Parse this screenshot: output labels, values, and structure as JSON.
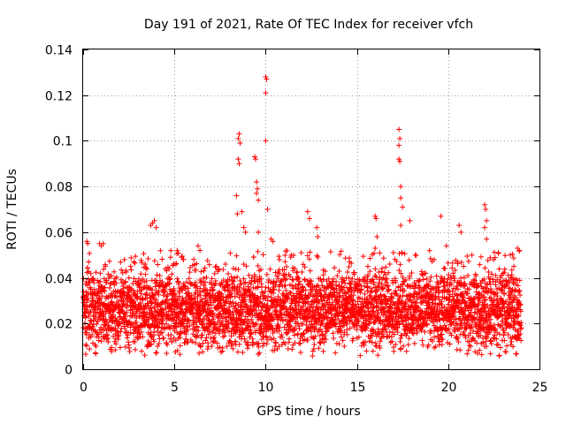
{
  "chart_data": {
    "type": "scatter",
    "title": "Day 191 of 2021, Rate Of TEC Index for receiver vfch",
    "xlabel": "GPS time / hours",
    "ylabel": "ROTI / TECUs",
    "xlim": [
      0,
      25
    ],
    "ylim": [
      0,
      0.14
    ],
    "x_ticks": [
      0,
      5,
      10,
      15,
      20,
      25
    ],
    "x_tick_labels": [
      "0",
      "5",
      "10",
      "15",
      "20",
      "25"
    ],
    "y_ticks": [
      0,
      0.02,
      0.04,
      0.06,
      0.08,
      0.1,
      0.12,
      0.14
    ],
    "y_tick_labels": [
      "0",
      "0.02",
      "0.04",
      "0.06",
      "0.08",
      "0.1",
      "0.12",
      "0.14"
    ],
    "grid": true,
    "marker": "+",
    "color": "#ff0000",
    "series": [
      {
        "name": "ROTI",
        "background_band": {
          "x_range": [
            0,
            24
          ],
          "typical_range": [
            0.005,
            0.04
          ],
          "median": 0.017,
          "note": "dense cloud of thousands of '+' points; values estimated from the figure"
        },
        "points": [
          {
            "x": 0.2,
            "y": 0.056
          },
          {
            "x": 0.25,
            "y": 0.055
          },
          {
            "x": 0.3,
            "y": 0.047
          },
          {
            "x": 0.9,
            "y": 0.055
          },
          {
            "x": 1.0,
            "y": 0.054
          },
          {
            "x": 1.1,
            "y": 0.055
          },
          {
            "x": 2.6,
            "y": 0.045
          },
          {
            "x": 3.4,
            "y": 0.046
          },
          {
            "x": 3.7,
            "y": 0.063
          },
          {
            "x": 3.8,
            "y": 0.064
          },
          {
            "x": 3.9,
            "y": 0.065
          },
          {
            "x": 4.0,
            "y": 0.062
          },
          {
            "x": 5.4,
            "y": 0.049
          },
          {
            "x": 5.5,
            "y": 0.048
          },
          {
            "x": 6.3,
            "y": 0.054
          },
          {
            "x": 6.4,
            "y": 0.052
          },
          {
            "x": 7.3,
            "y": 0.045
          },
          {
            "x": 7.8,
            "y": 0.046
          },
          {
            "x": 8.4,
            "y": 0.076
          },
          {
            "x": 8.45,
            "y": 0.068
          },
          {
            "x": 8.5,
            "y": 0.092
          },
          {
            "x": 8.55,
            "y": 0.09
          },
          {
            "x": 8.5,
            "y": 0.101
          },
          {
            "x": 8.55,
            "y": 0.103
          },
          {
            "x": 8.6,
            "y": 0.099
          },
          {
            "x": 8.7,
            "y": 0.069
          },
          {
            "x": 8.8,
            "y": 0.062
          },
          {
            "x": 8.9,
            "y": 0.06
          },
          {
            "x": 9.4,
            "y": 0.093
          },
          {
            "x": 9.45,
            "y": 0.092
          },
          {
            "x": 9.5,
            "y": 0.082
          },
          {
            "x": 9.55,
            "y": 0.079
          },
          {
            "x": 9.5,
            "y": 0.077
          },
          {
            "x": 9.6,
            "y": 0.074
          },
          {
            "x": 9.6,
            "y": 0.06
          },
          {
            "x": 10.0,
            "y": 0.128
          },
          {
            "x": 10.05,
            "y": 0.127
          },
          {
            "x": 10.0,
            "y": 0.121
          },
          {
            "x": 10.0,
            "y": 0.1
          },
          {
            "x": 10.1,
            "y": 0.07
          },
          {
            "x": 10.3,
            "y": 0.057
          },
          {
            "x": 10.4,
            "y": 0.056
          },
          {
            "x": 11.4,
            "y": 0.05
          },
          {
            "x": 12.3,
            "y": 0.069
          },
          {
            "x": 12.4,
            "y": 0.066
          },
          {
            "x": 12.8,
            "y": 0.062
          },
          {
            "x": 12.85,
            "y": 0.058
          },
          {
            "x": 14.6,
            "y": 0.047
          },
          {
            "x": 15.6,
            "y": 0.045
          },
          {
            "x": 16.0,
            "y": 0.067
          },
          {
            "x": 16.05,
            "y": 0.066
          },
          {
            "x": 16.1,
            "y": 0.058
          },
          {
            "x": 16.0,
            "y": 0.053
          },
          {
            "x": 16.8,
            "y": 0.046
          },
          {
            "x": 17.3,
            "y": 0.105
          },
          {
            "x": 17.35,
            "y": 0.101
          },
          {
            "x": 17.3,
            "y": 0.098
          },
          {
            "x": 17.35,
            "y": 0.091
          },
          {
            "x": 17.3,
            "y": 0.092
          },
          {
            "x": 17.4,
            "y": 0.08
          },
          {
            "x": 17.4,
            "y": 0.075
          },
          {
            "x": 17.5,
            "y": 0.071
          },
          {
            "x": 17.4,
            "y": 0.063
          },
          {
            "x": 17.9,
            "y": 0.065
          },
          {
            "x": 18.2,
            "y": 0.05
          },
          {
            "x": 19.6,
            "y": 0.067
          },
          {
            "x": 19.9,
            "y": 0.054
          },
          {
            "x": 20.6,
            "y": 0.063
          },
          {
            "x": 20.7,
            "y": 0.06
          },
          {
            "x": 21.3,
            "y": 0.05
          },
          {
            "x": 22.0,
            "y": 0.072
          },
          {
            "x": 22.05,
            "y": 0.07
          },
          {
            "x": 22.1,
            "y": 0.065
          },
          {
            "x": 22.0,
            "y": 0.062
          },
          {
            "x": 22.1,
            "y": 0.057
          },
          {
            "x": 23.6,
            "y": 0.045
          },
          {
            "x": 23.8,
            "y": 0.053
          },
          {
            "x": 23.9,
            "y": 0.052
          }
        ]
      }
    ]
  }
}
